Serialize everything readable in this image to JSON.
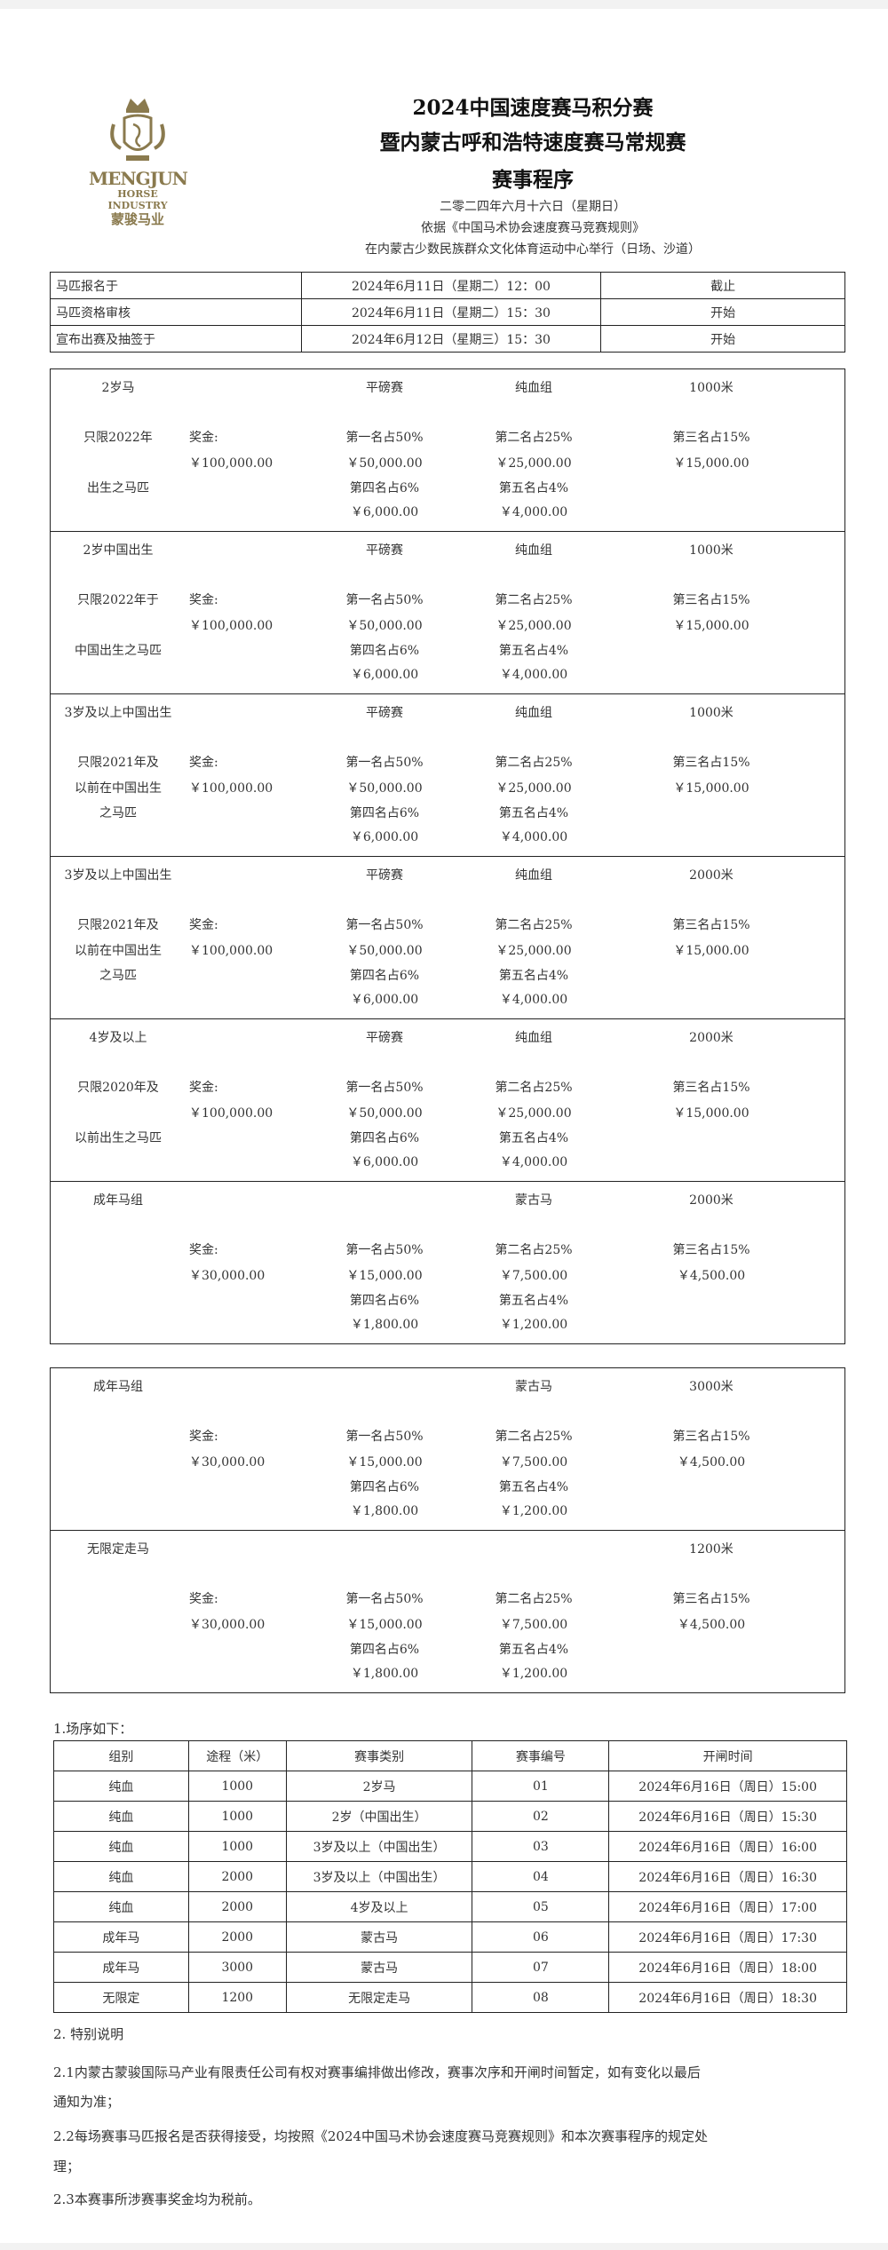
{
  "logo": {
    "line1": "MENGJUN",
    "line2": "HORSE INDUSTRY",
    "line3": "蒙骏马业"
  },
  "header": {
    "title1": "2024中国速度赛马积分赛",
    "title2": "暨内蒙古呼和浩特速度赛马常规赛",
    "title3": "赛事程序",
    "date": "二零二四年六月十六日（星期日）",
    "basis": "依据《中国马术协会速度赛马竞赛规则》",
    "venue": "在内蒙古少数民族群众文化体育运动中心举行（日场、沙道）"
  },
  "deadlines": [
    [
      "马匹报名于",
      "2024年6月11日（星期二）12：00",
      "截止"
    ],
    [
      "马匹资格审核",
      "2024年6月11日（星期二）15：30",
      "开始"
    ],
    [
      "宣布出赛及抽签于",
      "2024年6月12日（星期三）15：30",
      "开始"
    ]
  ],
  "races_box1": [
    {
      "name": "2岁马",
      "type": "平磅赛",
      "group": "纯血组",
      "distance": "1000米",
      "label": [
        "只限2022年",
        "",
        "出生之马匹"
      ],
      "prize_label": "奖金:",
      "prize": "￥100,000.00",
      "p1": "第一名占50%",
      "v1": "￥50,000.00",
      "p2": "第二名占25%",
      "v2": "￥25,000.00",
      "p3": "第三名占15%",
      "v3": "￥15,000.00",
      "p4": "第四名占6%",
      "v4": "￥6,000.00",
      "p5": "第五名占4%",
      "v5": "￥4,000.00"
    },
    {
      "name": "2岁中国出生",
      "type": "平磅赛",
      "group": "纯血组",
      "distance": "1000米",
      "label": [
        "只限2022年于",
        "",
        "中国出生之马匹"
      ],
      "prize_label": "奖金:",
      "prize": "￥100,000.00",
      "p1": "第一名占50%",
      "v1": "￥50,000.00",
      "p2": "第二名占25%",
      "v2": "￥25,000.00",
      "p3": "第三名占15%",
      "v3": "￥15,000.00",
      "p4": "第四名占6%",
      "v4": "￥6,000.00",
      "p5": "第五名占4%",
      "v5": "￥4,000.00"
    },
    {
      "name": "3岁及以上中国出生",
      "type": "平磅赛",
      "group": "纯血组",
      "distance": "1000米",
      "label": [
        "只限2021年及",
        "以前在中国出生",
        "之马匹"
      ],
      "prize_label": "奖金:",
      "prize": "￥100,000.00",
      "p1": "第一名占50%",
      "v1": "￥50,000.00",
      "p2": "第二名占25%",
      "v2": "￥25,000.00",
      "p3": "第三名占15%",
      "v3": "￥15,000.00",
      "p4": "第四名占6%",
      "v4": "￥6,000.00",
      "p5": "第五名占4%",
      "v5": "￥4,000.00"
    },
    {
      "name": "3岁及以上中国出生",
      "type": "平磅赛",
      "group": "纯血组",
      "distance": "2000米",
      "label": [
        "只限2021年及",
        "以前在中国出生",
        "之马匹"
      ],
      "prize_label": "奖金:",
      "prize": "￥100,000.00",
      "p1": "第一名占50%",
      "v1": "￥50,000.00",
      "p2": "第二名占25%",
      "v2": "￥25,000.00",
      "p3": "第三名占15%",
      "v3": "￥15,000.00",
      "p4": "第四名占6%",
      "v4": "￥6,000.00",
      "p5": "第五名占4%",
      "v5": "￥4,000.00"
    },
    {
      "name": "4岁及以上",
      "type": "平磅赛",
      "group": "纯血组",
      "distance": "2000米",
      "label": [
        "只限2020年及",
        "",
        "以前出生之马匹"
      ],
      "prize_label": "奖金:",
      "prize": "￥100,000.00",
      "p1": "第一名占50%",
      "v1": "￥50,000.00",
      "p2": "第二名占25%",
      "v2": "￥25,000.00",
      "p3": "第三名占15%",
      "v3": "￥15,000.00",
      "p4": "第四名占6%",
      "v4": "￥6,000.00",
      "p5": "第五名占4%",
      "v5": "￥4,000.00"
    },
    {
      "name": "成年马组",
      "type": "",
      "group": "蒙古马",
      "distance": "2000米",
      "label": [
        "",
        "",
        ""
      ],
      "prize_label": "奖金:",
      "prize": "￥30,000.00",
      "p1": "第一名占50%",
      "v1": "￥15,000.00",
      "p2": "第二名占25%",
      "v2": "￥7,500.00",
      "p3": "第三名占15%",
      "v3": "￥4,500.00",
      "p4": "第四名占6%",
      "v4": "￥1,800.00",
      "p5": "第五名占4%",
      "v5": "￥1,200.00"
    }
  ],
  "races_box2": [
    {
      "name": "成年马组",
      "type": "",
      "group": "蒙古马",
      "distance": "3000米",
      "label": [
        "",
        "",
        ""
      ],
      "prize_label": "奖金:",
      "prize": "￥30,000.00",
      "p1": "第一名占50%",
      "v1": "￥15,000.00",
      "p2": "第二名占25%",
      "v2": "￥7,500.00",
      "p3": "第三名占15%",
      "v3": "￥4,500.00",
      "p4": "第四名占6%",
      "v4": "￥1,800.00",
      "p5": "第五名占4%",
      "v5": "￥1,200.00"
    },
    {
      "name": "无限定走马",
      "type": "",
      "group": "",
      "distance": "1200米",
      "label": [
        "",
        "",
        ""
      ],
      "prize_label": "奖金:",
      "prize": "￥30,000.00",
      "p1": "第一名占50%",
      "v1": "￥15,000.00",
      "p2": "第二名占25%",
      "v2": "￥7,500.00",
      "p3": "第三名占15%",
      "v3": "￥4,500.00",
      "p4": "第四名占6%",
      "v4": "￥1,800.00",
      "p5": "第五名占4%",
      "v5": "￥1,200.00"
    }
  ],
  "schedule": {
    "heading": "1.场序如下：",
    "columns": [
      "组别",
      "途程（米）",
      "赛事类别",
      "赛事编号",
      "开闸时间"
    ],
    "rows": [
      [
        "纯血",
        "1000",
        "2岁马",
        "01",
        "2024年6月16日（周日）15:00"
      ],
      [
        "纯血",
        "1000",
        "2岁（中国出生）",
        "02",
        "2024年6月16日（周日）15:30"
      ],
      [
        "纯血",
        "1000",
        "3岁及以上（中国出生）",
        "03",
        "2024年6月16日（周日）16:00"
      ],
      [
        "纯血",
        "2000",
        "3岁及以上（中国出生）",
        "04",
        "2024年6月16日（周日）16:30"
      ],
      [
        "纯血",
        "2000",
        "4岁及以上",
        "05",
        "2024年6月16日（周日）17:00"
      ],
      [
        "成年马",
        "2000",
        "蒙古马",
        "06",
        "2024年6月16日（周日）17:30"
      ],
      [
        "成年马",
        "3000",
        "蒙古马",
        "07",
        "2024年6月16日（周日）18:00"
      ],
      [
        "无限定",
        "1200",
        "无限定走马",
        "08",
        "2024年6月16日（周日）18:30"
      ]
    ]
  },
  "notes": {
    "heading": "2. 特别说明",
    "lines": [
      "2.1内蒙古蒙骏国际马产业有限责任公司有权对赛事编排做出修改，赛事次序和开闸时间暂定，如有变化以最后",
      "通知为准；",
      "2.2每场赛事马匹报名是否获得接受，均按照《2024中国马术协会速度赛马竞赛规则》和本次赛事程序的规定处",
      "理；",
      "2.3本赛事所涉赛事奖金均为税前。"
    ]
  }
}
